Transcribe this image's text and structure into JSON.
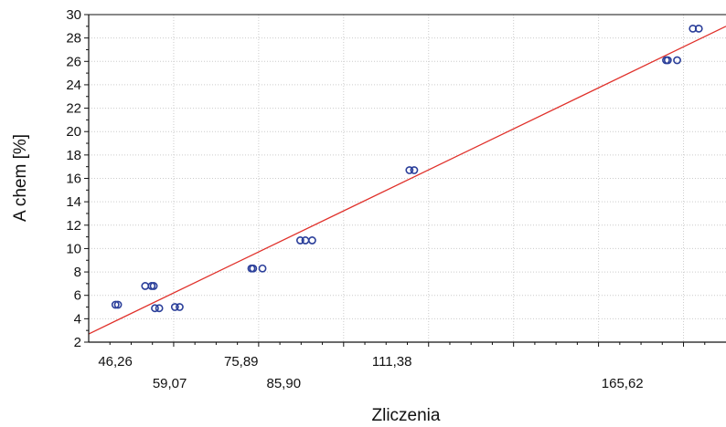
{
  "chart_data": {
    "type": "scatter",
    "title": "",
    "xlabel": "Zliczenia",
    "ylabel": "A chem [%]",
    "xlim": [
      40,
      190
    ],
    "ylim": [
      2,
      30
    ],
    "grid": true,
    "x_tick_labels": [
      "46,26",
      "59,07",
      "75,89",
      "85,90",
      "111,38",
      "165,62"
    ],
    "y_ticks": [
      2,
      4,
      6,
      8,
      10,
      12,
      14,
      16,
      18,
      20,
      22,
      24,
      26,
      28,
      30
    ],
    "series": [
      {
        "color": "#2b3f9a",
        "points": [
          {
            "x": 46.3,
            "y": 5.2
          },
          {
            "x": 46.9,
            "y": 5.2
          },
          {
            "x": 53.3,
            "y": 6.8
          },
          {
            "x": 54.8,
            "y": 6.8
          },
          {
            "x": 55.3,
            "y": 6.8
          },
          {
            "x": 55.6,
            "y": 4.9
          },
          {
            "x": 56.6,
            "y": 4.9
          },
          {
            "x": 60.3,
            "y": 5.0
          },
          {
            "x": 61.4,
            "y": 5.0
          },
          {
            "x": 78.3,
            "y": 8.3
          },
          {
            "x": 78.7,
            "y": 8.3
          },
          {
            "x": 80.9,
            "y": 8.3
          },
          {
            "x": 89.8,
            "y": 10.7
          },
          {
            "x": 91.0,
            "y": 10.7
          },
          {
            "x": 92.6,
            "y": 10.7
          },
          {
            "x": 115.5,
            "y": 16.7
          },
          {
            "x": 116.6,
            "y": 16.7
          },
          {
            "x": 175.9,
            "y": 26.1
          },
          {
            "x": 176.3,
            "y": 26.1
          },
          {
            "x": 178.5,
            "y": 26.1
          },
          {
            "x": 182.2,
            "y": 28.8
          },
          {
            "x": 183.6,
            "y": 28.8
          }
        ]
      }
    ],
    "fit_line": {
      "color": "#e0302a",
      "x": [
        40,
        190
      ],
      "y": [
        2.7,
        29.0
      ]
    }
  }
}
